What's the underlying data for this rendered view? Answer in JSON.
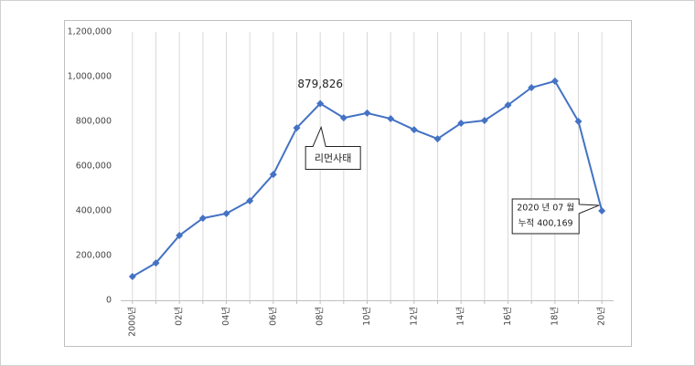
{
  "chart_data": {
    "type": "line",
    "categories": [
      "2000년",
      null,
      "02년",
      null,
      "04년",
      null,
      "06년",
      null,
      "08년",
      null,
      "10년",
      null,
      "12년",
      null,
      "14년",
      null,
      "16년",
      null,
      "18년",
      null,
      "20년"
    ],
    "series": [
      {
        "name": "누적",
        "color": "#4472c4",
        "values": [
          106000,
          167000,
          290000,
          367000,
          388000,
          445000,
          563000,
          771000,
          879826,
          816000,
          837000,
          812000,
          763000,
          722000,
          792000,
          804000,
          873000,
          951000,
          980000,
          800000,
          400169
        ],
        "value_labels": [
          null,
          null,
          null,
          null,
          null,
          null,
          null,
          null,
          "879,826",
          null,
          null,
          null,
          null,
          null,
          null,
          null,
          null,
          null,
          null,
          null,
          null
        ]
      }
    ],
    "ylim": [
      0,
      1200000
    ],
    "yticks": [
      0,
      {
        "value": 200000,
        "label": "200,000"
      },
      {
        "value": 400000,
        "label": "400,000"
      },
      {
        "value": 600000,
        "label": "600,000"
      },
      {
        "value": 800000,
        "label": "800,000"
      },
      {
        "value": 1000000,
        "label": "1,000,000"
      },
      {
        "value": 1200000,
        "label": "1,200,000"
      }
    ],
    "grid": true,
    "annotations": [
      {
        "text": "리먼사태",
        "index": 8
      },
      {
        "text": [
          "2020 년 07 월",
          "누적 400,169"
        ],
        "index": 20
      }
    ]
  }
}
